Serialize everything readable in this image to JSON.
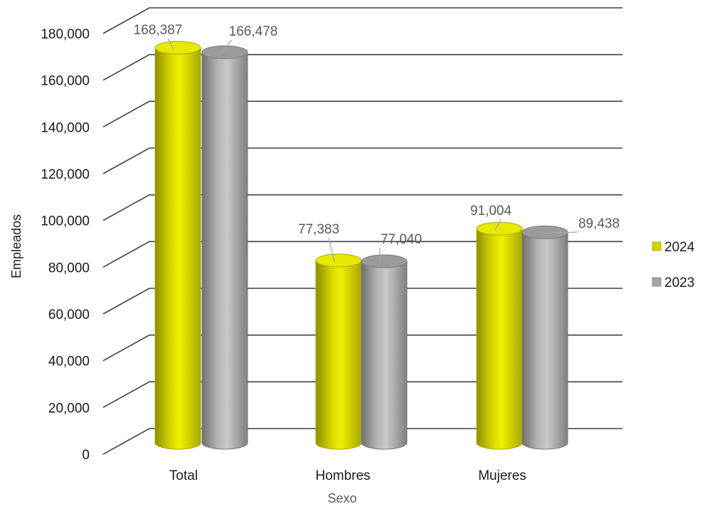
{
  "chart_data": {
    "type": "bar",
    "title": "",
    "xlabel": "Sexo",
    "ylabel": "Empleados",
    "categories": [
      "Total",
      "Hombres",
      "Mujeres"
    ],
    "series": [
      {
        "name": "2024",
        "values": [
          168387,
          77383,
          91004
        ],
        "labels": [
          "168,387",
          "77,383",
          "91,004"
        ],
        "color": "#d4d400"
      },
      {
        "name": "2023",
        "values": [
          166478,
          77040,
          89438
        ],
        "labels": [
          "166,478",
          "77,040",
          "89,438"
        ],
        "color": "#a6a6a6"
      }
    ],
    "ylim": [
      0,
      180000
    ],
    "yticks": [
      0,
      20000,
      40000,
      60000,
      80000,
      100000,
      120000,
      140000,
      160000,
      180000
    ],
    "ytick_labels": [
      "0",
      "20,000",
      "40,000",
      "60,000",
      "80,000",
      "100,000",
      "120,000",
      "140,000",
      "160,000",
      "180,000"
    ],
    "grid": true,
    "legend_position": "right",
    "style": "3d-cylinder"
  }
}
